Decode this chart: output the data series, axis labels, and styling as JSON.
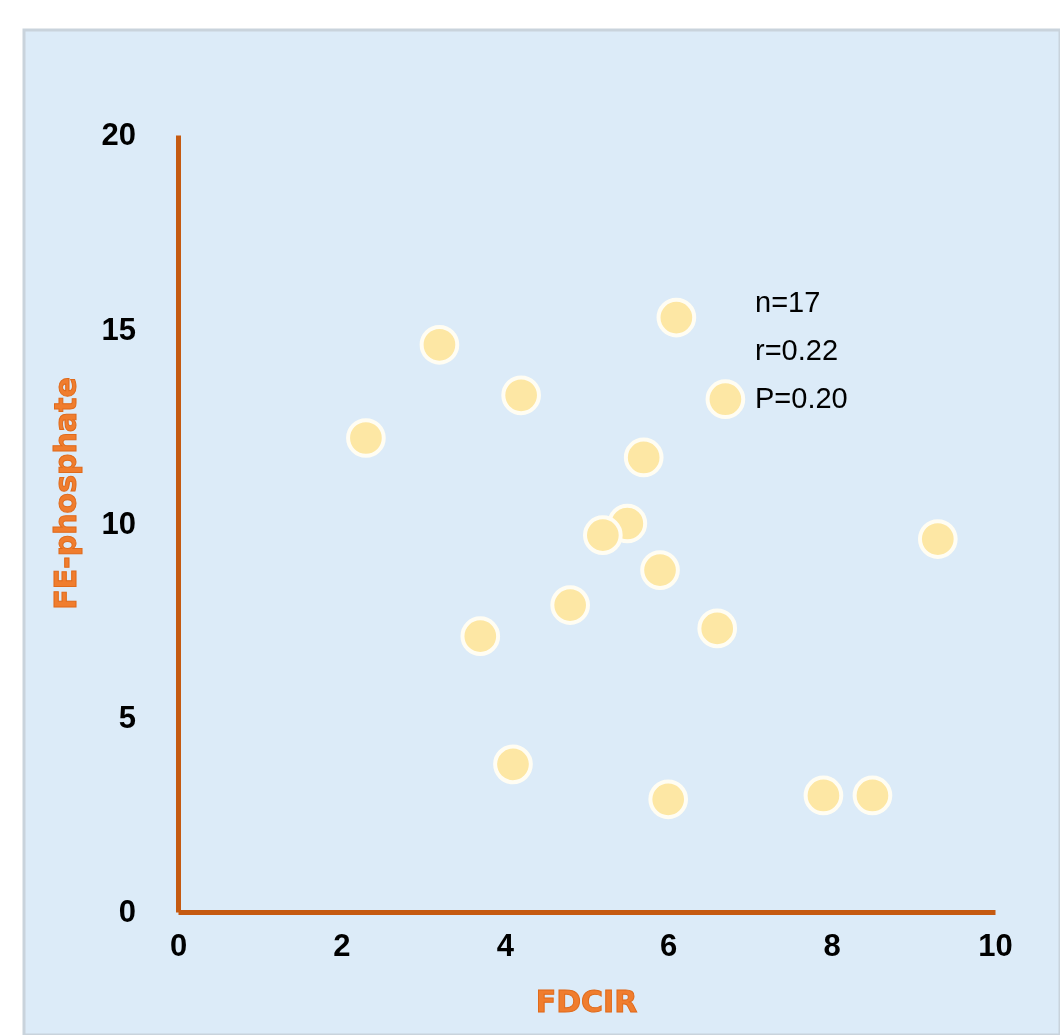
{
  "chart_data": {
    "type": "scatter",
    "xlabel": "FDCIR",
    "ylabel": "FE-phosphate",
    "annotations": [
      "n=17",
      "r=0.22",
      "P=0.20"
    ],
    "x": [
      3.2,
      2.3,
      4.2,
      6.1,
      6.7,
      5.7,
      5.5,
      5.2,
      5.9,
      4.8,
      3.7,
      6.6,
      9.3,
      4.1,
      6.0,
      7.9,
      8.5
    ],
    "series": [
      {
        "color": "#fde7a4",
        "values": [
          14.6,
          12.2,
          13.3,
          15.3,
          13.2,
          11.7,
          10.0,
          9.7,
          8.8,
          7.9,
          7.1,
          7.3,
          9.6,
          3.8,
          2.9,
          3.0,
          3.0
        ]
      }
    ],
    "xlim": [
      0,
      10
    ],
    "ylim": [
      0,
      20
    ],
    "xticks": [
      0,
      2,
      4,
      6,
      8,
      10
    ],
    "yticks": [
      0,
      5,
      10,
      15,
      20
    ],
    "grid": false,
    "marker": "circle"
  }
}
